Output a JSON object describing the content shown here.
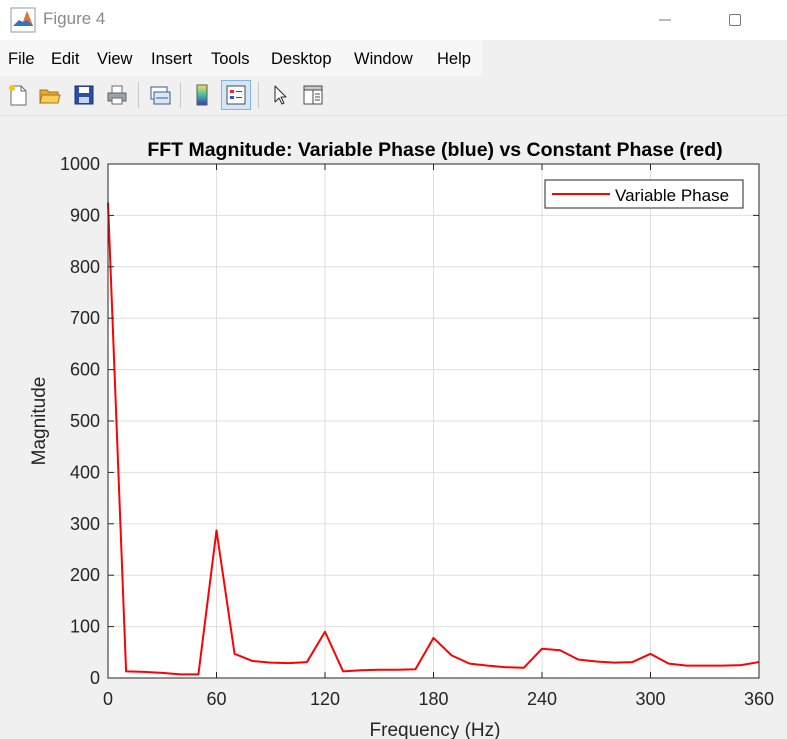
{
  "window": {
    "title": "Figure 4",
    "icon": "matlab-icon",
    "controls": [
      "minimize-icon",
      "maximize-icon"
    ]
  },
  "menu": {
    "items": [
      "File",
      "Edit",
      "View",
      "Insert",
      "Tools",
      "Desktop",
      "Window",
      "Help"
    ]
  },
  "toolbar": {
    "buttons": [
      "new-figure-icon",
      "open-folder-icon",
      "save-icon",
      "print-icon",
      "link-plot-icon",
      "colorbar-icon",
      "legend-icon",
      "pointer-icon",
      "property-editor-icon"
    ],
    "active": "legend-icon"
  },
  "chart_data": {
    "type": "line",
    "title": "FFT Magnitude: Variable Phase (blue) vs Constant Phase (red)",
    "xlabel": "Frequency (Hz)",
    "ylabel": "Magnitude",
    "xlim": [
      0,
      360
    ],
    "ylim": [
      0,
      1000
    ],
    "xticks": [
      0,
      60,
      120,
      180,
      240,
      300,
      360
    ],
    "yticks": [
      0,
      100,
      200,
      300,
      400,
      500,
      600,
      700,
      800,
      900,
      1000
    ],
    "grid": true,
    "legend": {
      "position": "top-right",
      "entries": [
        "Variable Phase"
      ]
    },
    "series": [
      {
        "name": "Variable Phase",
        "color": "#ff0000",
        "x": [
          0,
          10,
          20,
          30,
          40,
          50,
          60,
          70,
          80,
          90,
          100,
          110,
          120,
          130,
          140,
          150,
          160,
          170,
          180,
          190,
          200,
          210,
          220,
          230,
          240,
          250,
          260,
          270,
          280,
          290,
          300,
          310,
          320,
          330,
          340,
          350,
          360
        ],
        "y": [
          925,
          13,
          12,
          10,
          7,
          7,
          287,
          47,
          33,
          30,
          29,
          31,
          90,
          13,
          15,
          16,
          16,
          17,
          78,
          44,
          28,
          24,
          21,
          20,
          57,
          54,
          36,
          32,
          30,
          31,
          47,
          28,
          24,
          24,
          24,
          25,
          31
        ]
      }
    ]
  }
}
